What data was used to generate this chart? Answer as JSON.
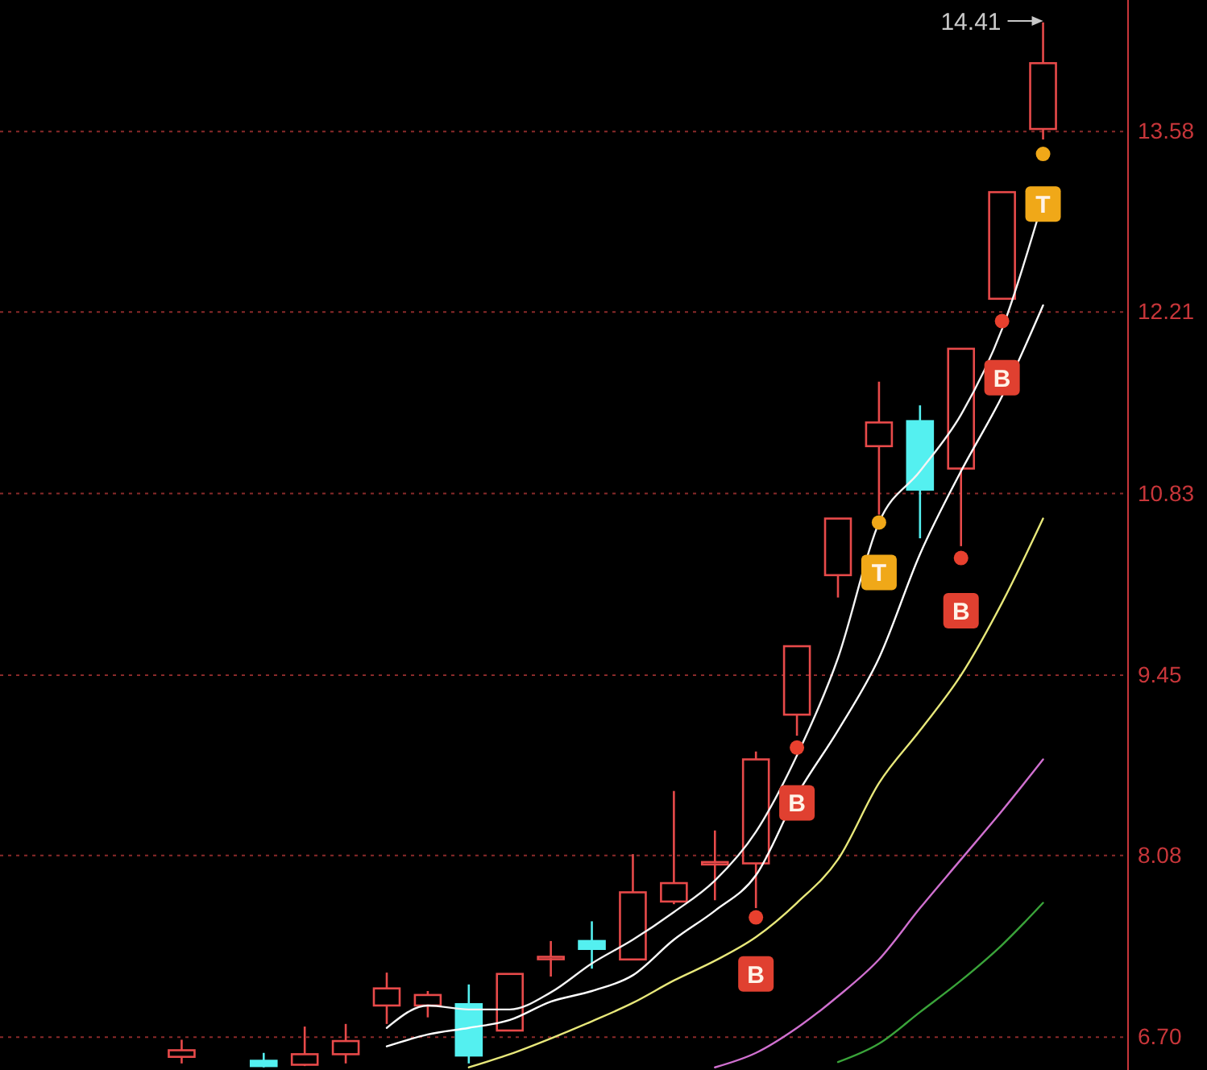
{
  "chart_data": {
    "type": "candlestick",
    "categories": [
      null,
      null,
      null,
      null,
      null,
      null,
      null,
      null,
      null,
      null,
      null,
      null,
      null,
      null,
      null,
      null,
      null,
      null,
      null,
      null,
      null,
      null
    ],
    "ohlc": [
      [
        6.55,
        6.68,
        6.5,
        6.6
      ],
      null,
      [
        6.52,
        6.58,
        6.47,
        6.48
      ],
      [
        6.49,
        6.78,
        6.48,
        6.57
      ],
      [
        6.57,
        6.8,
        6.5,
        6.67
      ],
      [
        6.94,
        7.19,
        6.8,
        7.07
      ],
      [
        6.94,
        7.05,
        6.85,
        7.02
      ],
      [
        6.95,
        7.1,
        6.5,
        6.56
      ],
      [
        6.75,
        7.18,
        6.75,
        7.18
      ],
      [
        7.3,
        7.43,
        7.16,
        7.31
      ],
      [
        7.43,
        7.58,
        7.22,
        7.37
      ],
      [
        7.29,
        8.09,
        7.29,
        7.8
      ],
      [
        7.73,
        8.57,
        7.71,
        7.87
      ],
      [
        8.02,
        8.27,
        7.74,
        8.03
      ],
      [
        8.02,
        8.87,
        7.68,
        8.81
      ],
      [
        9.15,
        9.67,
        8.99,
        9.67
      ],
      [
        10.21,
        10.64,
        10.04,
        10.64
      ],
      [
        11.19,
        11.68,
        10.67,
        11.37
      ],
      [
        11.38,
        11.5,
        10.49,
        10.86
      ],
      [
        11.02,
        11.93,
        10.43,
        11.93
      ],
      [
        12.31,
        13.12,
        12.31,
        13.12
      ],
      [
        13.6,
        14.41,
        13.52,
        14.1
      ]
    ],
    "colors": [
      "#e84a4a",
      null,
      "#54f0f0",
      "#e84a4a",
      "#e84a4a",
      "#e84a4a",
      "#e84a4a",
      "#54f0f0",
      "#e84a4a",
      "#e84a4a",
      "#54f0f0",
      "#e84a4a",
      "#e84a4a",
      "#e84a4a",
      "#e84a4a",
      "#e84a4a",
      "#e84a4a",
      "#e84a4a",
      "#54f0f0",
      "#e84a4a",
      "#e84a4a",
      "#e84a4a"
    ],
    "series": [
      {
        "type": "line",
        "color": "#f4f4f4",
        "values": [
          null,
          null,
          null,
          null,
          null,
          6.77,
          6.94,
          6.91,
          6.91,
          7.04,
          7.26,
          7.44,
          7.65,
          7.89,
          8.26,
          8.84,
          9.58,
          10.61,
          11.0,
          11.43,
          12.08,
          13.06
        ]
      },
      {
        "type": "line",
        "color": "#ffffff",
        "values": [
          null,
          null,
          null,
          null,
          null,
          6.63,
          6.72,
          6.77,
          6.83,
          6.97,
          7.05,
          7.17,
          7.44,
          7.66,
          7.93,
          8.54,
          9.03,
          9.58,
          10.37,
          11.0,
          11.57,
          12.26
        ]
      },
      {
        "type": "line",
        "color": "#e8e87a",
        "values": [
          null,
          null,
          null,
          null,
          null,
          null,
          null,
          6.47,
          6.57,
          6.69,
          6.82,
          6.96,
          7.13,
          7.28,
          7.46,
          7.72,
          8.05,
          8.63,
          9.03,
          9.45,
          10.0,
          10.64
        ]
      },
      {
        "type": "line",
        "color": "#d070d0",
        "values": [
          null,
          null,
          null,
          null,
          null,
          null,
          null,
          null,
          null,
          null,
          null,
          null,
          null,
          6.47,
          6.58,
          6.77,
          7.01,
          7.29,
          7.68,
          8.05,
          8.42,
          8.81
        ]
      },
      {
        "type": "line",
        "color": "#3aa43a",
        "values": [
          null,
          null,
          null,
          null,
          null,
          null,
          null,
          null,
          null,
          null,
          null,
          null,
          null,
          null,
          null,
          null,
          6.51,
          6.65,
          6.89,
          7.13,
          7.4,
          7.72
        ]
      },
      {
        "type": "scatter",
        "marker": "circle",
        "color": "#e8402e",
        "values": [
          null,
          null,
          null,
          null,
          null,
          null,
          null,
          null,
          null,
          null,
          null,
          null,
          null,
          null,
          7.61,
          8.9,
          null,
          null,
          null,
          10.34,
          12.14,
          null
        ]
      },
      {
        "type": "scatter",
        "marker": "circle",
        "color": "#f0a818",
        "values": [
          null,
          null,
          null,
          null,
          null,
          null,
          null,
          null,
          null,
          null,
          null,
          null,
          null,
          null,
          null,
          null,
          null,
          10.61,
          null,
          null,
          null,
          13.41
        ]
      },
      {
        "type": "scatter",
        "marker": "square",
        "color": "#e04030",
        "values": [
          null,
          null,
          null,
          null,
          null,
          null,
          null,
          null,
          null,
          null,
          null,
          null,
          null,
          null,
          7.18,
          8.48,
          null,
          null,
          null,
          9.94,
          11.71,
          null
        ],
        "value_labels": [
          null,
          null,
          null,
          null,
          null,
          null,
          null,
          null,
          null,
          null,
          null,
          null,
          null,
          null,
          "B",
          "B",
          null,
          null,
          null,
          "B",
          "B",
          null
        ]
      },
      {
        "type": "scatter",
        "marker": "square",
        "color": "#f0a818",
        "values": [
          null,
          null,
          null,
          null,
          null,
          null,
          null,
          null,
          null,
          null,
          null,
          null,
          null,
          null,
          null,
          null,
          null,
          10.23,
          null,
          null,
          null,
          13.03
        ],
        "value_labels": [
          null,
          null,
          null,
          null,
          null,
          null,
          null,
          null,
          null,
          null,
          null,
          null,
          null,
          null,
          null,
          null,
          null,
          "T",
          null,
          null,
          null,
          "T"
        ]
      }
    ],
    "ylim": [
      6.45,
      14.58
    ],
    "yticks": [
      {
        "value": 13.58,
        "label": "13.58"
      },
      {
        "value": 12.21,
        "label": "12.21"
      },
      {
        "value": 10.83,
        "label": "10.83"
      },
      {
        "value": 9.45,
        "label": "9.45"
      },
      {
        "value": 8.08,
        "label": "8.08"
      },
      {
        "value": 6.7,
        "label": "6.70"
      }
    ],
    "grid": "y",
    "annotations": [
      "14.41"
    ]
  }
}
